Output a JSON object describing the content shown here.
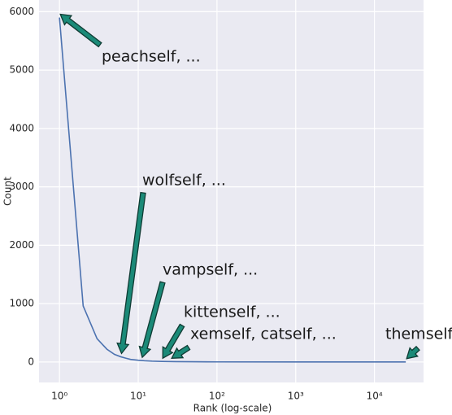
{
  "chart_data": {
    "type": "line",
    "xlabel": "Rank (log-scale)",
    "ylabel": "Count",
    "log_x": true,
    "grid": true,
    "color": "#4c72b0",
    "x": [
      1,
      2,
      3,
      4,
      5,
      6,
      7,
      8,
      10,
      12,
      15,
      20,
      30,
      50,
      100,
      1000,
      25000
    ],
    "values": [
      5900,
      960,
      400,
      220,
      130,
      90,
      65,
      45,
      30,
      22,
      15,
      10,
      6,
      4,
      2,
      1,
      1
    ],
    "xlim": [
      0.55,
      42000
    ],
    "ylim": [
      -350,
      6200
    ],
    "xticks": [
      {
        "value": 1,
        "label": "10⁰"
      },
      {
        "value": 10,
        "label": "10¹"
      },
      {
        "value": 100,
        "label": "10²"
      },
      {
        "value": 1000,
        "label": "10³"
      },
      {
        "value": 10000,
        "label": "10⁴"
      }
    ],
    "yticks": [
      0,
      1000,
      2000,
      3000,
      4000,
      5000,
      6000
    ],
    "annotations": [
      {
        "text": "peachself, ...",
        "x": 1,
        "y": 5900
      },
      {
        "text": "wolfself, ...",
        "x": 6,
        "y": 90
      },
      {
        "text": "vampself, ...",
        "x": 11,
        "y": 25
      },
      {
        "text": "kittenself, ...",
        "x": 20,
        "y": 10
      },
      {
        "text": "xemself, catself, ...",
        "x": 26,
        "y": 8
      },
      {
        "text": "themself",
        "x": 25000,
        "y": 1
      }
    ]
  }
}
